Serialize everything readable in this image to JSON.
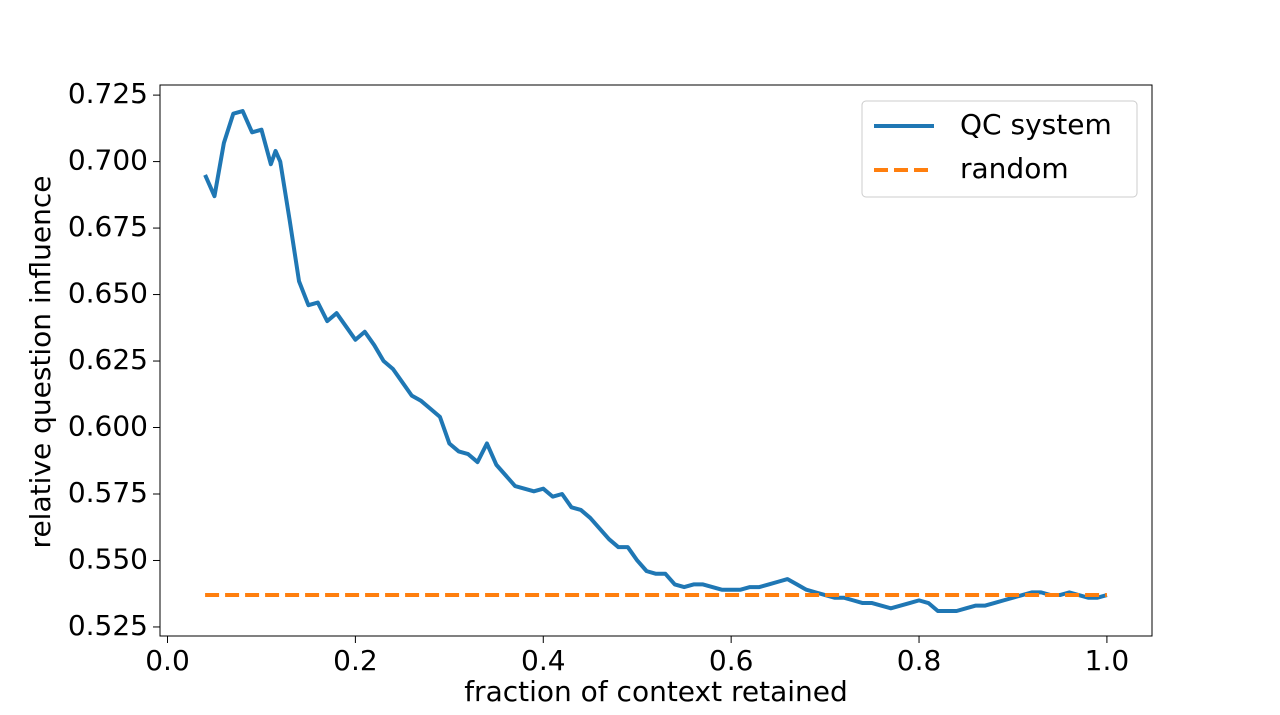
{
  "chart_data": {
    "type": "line",
    "xlabel": "fraction of context retained",
    "ylabel": "relative question influence",
    "xlim": [
      -0.008,
      1.048
    ],
    "ylim": [
      0.5216,
      0.7288
    ],
    "xticks": [
      {
        "value": 0,
        "label": "0.0"
      },
      0.2,
      0.4,
      0.6,
      0.8,
      {
        "value": 1,
        "label": "1.0"
      }
    ],
    "yticks": [
      0.525,
      {
        "value": 0.55,
        "label": "0.550"
      },
      0.575,
      {
        "value": 0.6,
        "label": "0.600"
      },
      0.625,
      {
        "value": 0.65,
        "label": "0.650"
      },
      0.675,
      {
        "value": 0.7,
        "label": "0.700"
      },
      0.725
    ],
    "legend": "upper right",
    "series": [
      {
        "name": "QC system",
        "color": "#1f77b4",
        "dash": "solid",
        "x": [
          0.04,
          0.05,
          0.06,
          0.07,
          0.08,
          0.09,
          0.1,
          0.11,
          0.115,
          0.12,
          0.13,
          0.14,
          0.15,
          0.16,
          0.17,
          0.18,
          0.19,
          0.2,
          0.21,
          0.22,
          0.23,
          0.24,
          0.25,
          0.26,
          0.27,
          0.28,
          0.29,
          0.3,
          0.31,
          0.32,
          0.33,
          0.34,
          0.35,
          0.36,
          0.37,
          0.38,
          0.39,
          0.4,
          0.41,
          0.42,
          0.43,
          0.44,
          0.45,
          0.46,
          0.47,
          0.48,
          0.49,
          0.5,
          0.51,
          0.52,
          0.53,
          0.54,
          0.55,
          0.56,
          0.57,
          0.58,
          0.59,
          0.6,
          0.61,
          0.62,
          0.63,
          0.64,
          0.65,
          0.66,
          0.67,
          0.68,
          0.69,
          0.7,
          0.71,
          0.72,
          0.73,
          0.74,
          0.75,
          0.76,
          0.77,
          0.78,
          0.79,
          0.8,
          0.81,
          0.82,
          0.83,
          0.84,
          0.85,
          0.86,
          0.87,
          0.88,
          0.89,
          0.9,
          0.91,
          0.92,
          0.93,
          0.94,
          0.95,
          0.96,
          0.97,
          0.98,
          0.99,
          1.0
        ],
        "values": [
          0.695,
          0.687,
          0.707,
          0.718,
          0.719,
          0.711,
          0.712,
          0.699,
          0.704,
          0.7,
          0.678,
          0.655,
          0.646,
          0.647,
          0.64,
          0.643,
          0.638,
          0.633,
          0.636,
          0.631,
          0.625,
          0.622,
          0.617,
          0.612,
          0.61,
          0.607,
          0.604,
          0.594,
          0.591,
          0.59,
          0.587,
          0.594,
          0.586,
          0.582,
          0.578,
          0.577,
          0.576,
          0.577,
          0.574,
          0.575,
          0.57,
          0.569,
          0.566,
          0.562,
          0.558,
          0.555,
          0.555,
          0.55,
          0.546,
          0.545,
          0.545,
          0.541,
          0.54,
          0.541,
          0.541,
          0.54,
          0.539,
          0.539,
          0.539,
          0.54,
          0.54,
          0.541,
          0.542,
          0.543,
          0.541,
          0.539,
          0.538,
          0.537,
          0.536,
          0.536,
          0.535,
          0.534,
          0.534,
          0.533,
          0.532,
          0.533,
          0.534,
          0.535,
          0.534,
          0.531,
          0.531,
          0.531,
          0.532,
          0.533,
          0.533,
          0.534,
          0.535,
          0.536,
          0.537,
          0.538,
          0.538,
          0.537,
          0.537,
          0.538,
          0.537,
          0.536,
          0.536,
          0.537
        ]
      },
      {
        "name": "random",
        "color": "#ff7f0e",
        "dash": "dashed",
        "x": [
          0.04,
          1.0
        ],
        "values": [
          0.537,
          0.537
        ]
      }
    ]
  }
}
